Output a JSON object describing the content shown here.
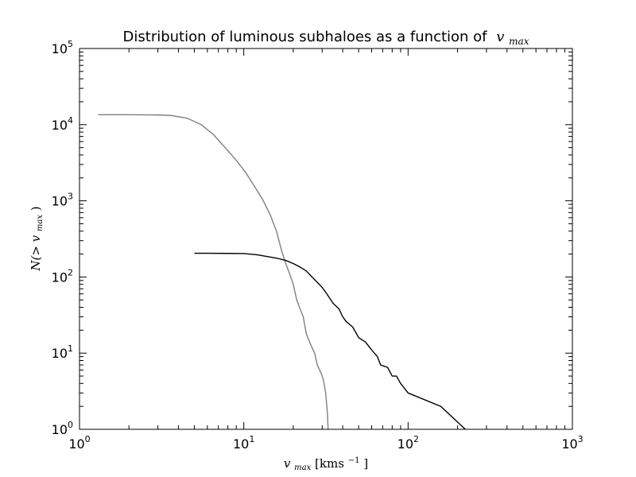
{
  "chart_data": {
    "type": "line",
    "title_prefix": "Distribution of luminous subhaloes as a function of",
    "title_math": "v",
    "title_math_sub": "max",
    "xlabel": {
      "var": "v",
      "sub": "max",
      "units": "[kms",
      "units_exp": "−1",
      "units_end": "]"
    },
    "ylabel": {
      "prefix": "N(>",
      "var": "v",
      "sub": "max",
      "suffix": ")"
    },
    "xscale": "log",
    "yscale": "log",
    "xlim": [
      1,
      1000
    ],
    "ylim": [
      1,
      100000
    ],
    "xticks": [
      {
        "base": "10",
        "exp": "0"
      },
      {
        "base": "10",
        "exp": "1"
      },
      {
        "base": "10",
        "exp": "2"
      },
      {
        "base": "10",
        "exp": "3"
      }
    ],
    "yticks": [
      {
        "base": "10",
        "exp": "0"
      },
      {
        "base": "10",
        "exp": "1"
      },
      {
        "base": "10",
        "exp": "2"
      },
      {
        "base": "10",
        "exp": "3"
      },
      {
        "base": "10",
        "exp": "4"
      },
      {
        "base": "10",
        "exp": "5"
      }
    ],
    "xtick_values": [
      1,
      10,
      100,
      1000
    ],
    "ytick_values": [
      1,
      10,
      100,
      1000,
      10000,
      100000
    ],
    "grid": false,
    "legend": "none",
    "series": [
      {
        "color": "#808080",
        "points": [
          [
            1.3,
            13500
          ],
          [
            2.0,
            13500
          ],
          [
            3.0,
            13400
          ],
          [
            3.6,
            13200
          ],
          [
            4.5,
            12200
          ],
          [
            5.5,
            10000
          ],
          [
            6.5,
            7500
          ],
          [
            7.7,
            5000
          ],
          [
            9.0,
            3400
          ],
          [
            10.2,
            2400
          ],
          [
            11.5,
            1600
          ],
          [
            13.0,
            1050
          ],
          [
            14.5,
            650
          ],
          [
            15.8,
            400
          ],
          [
            17.0,
            220
          ],
          [
            18.0,
            150
          ],
          [
            19.0,
            110
          ],
          [
            20.0,
            80
          ],
          [
            21.0,
            50
          ],
          [
            22.0,
            38
          ],
          [
            23.0,
            30
          ],
          [
            24.0,
            18
          ],
          [
            25.5,
            13
          ],
          [
            27.0,
            10
          ],
          [
            28.0,
            7
          ],
          [
            29.5,
            5.5
          ],
          [
            30.5,
            4.5
          ],
          [
            31.5,
            3
          ],
          [
            32.3,
            1.6
          ],
          [
            32.6,
            1
          ]
        ]
      },
      {
        "color": "#000000",
        "points": [
          [
            5.0,
            205
          ],
          [
            6.0,
            205
          ],
          [
            8.0,
            204
          ],
          [
            10.0,
            203
          ],
          [
            12.0,
            196
          ],
          [
            14.0,
            185
          ],
          [
            16.0,
            176
          ],
          [
            18.0,
            165
          ],
          [
            20.0,
            150
          ],
          [
            22.0,
            135
          ],
          [
            24.0,
            120
          ],
          [
            26.0,
            100
          ],
          [
            28.0,
            85
          ],
          [
            30.0,
            73
          ],
          [
            32.0,
            60
          ],
          [
            35.0,
            45
          ],
          [
            38.0,
            38
          ],
          [
            40.0,
            30
          ],
          [
            42.0,
            26
          ],
          [
            46.0,
            22
          ],
          [
            50.0,
            16
          ],
          [
            55.0,
            14
          ],
          [
            60.0,
            11
          ],
          [
            65.0,
            9
          ],
          [
            68.0,
            7
          ],
          [
            75.0,
            6.5
          ],
          [
            80.0,
            5
          ],
          [
            85.0,
            5
          ],
          [
            90.0,
            4
          ],
          [
            100.0,
            3
          ],
          [
            158.0,
            2
          ],
          [
            223.0,
            1
          ]
        ]
      }
    ]
  }
}
